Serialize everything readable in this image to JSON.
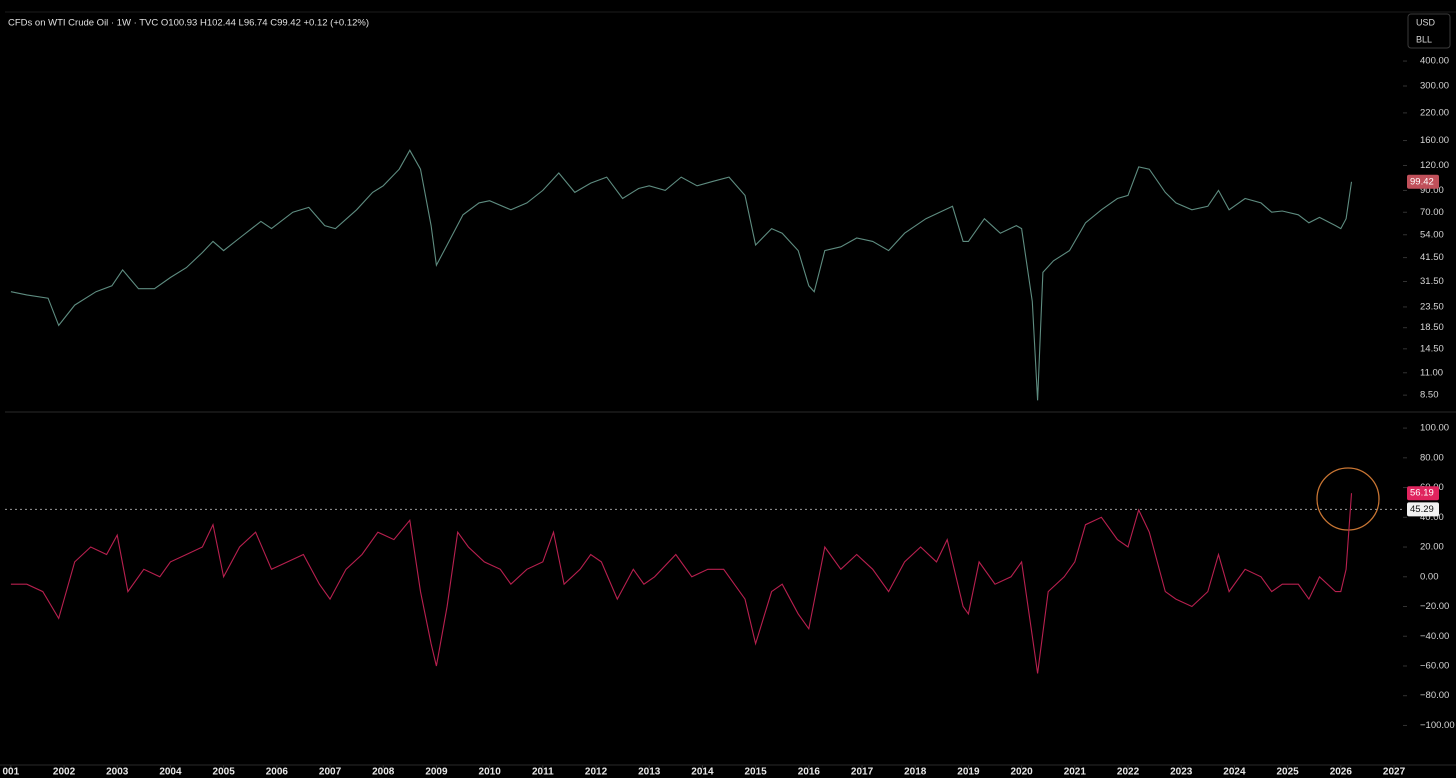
{
  "chart_data": [
    {
      "type": "line",
      "title": "CFDs on WTI Crude Oil · 1W · TVC  O100.93  H102.44  L96.74  C99.42  +0.12 (+0.12%)",
      "currency": "USD",
      "unit": "BLL",
      "log_scale": true,
      "color": "#5e8c80",
      "x": [
        2001.0,
        2001.3,
        2001.7,
        2001.9,
        2002.2,
        2002.6,
        2002.9,
        2003.1,
        2003.4,
        2003.7,
        2004.0,
        2004.3,
        2004.6,
        2004.8,
        2005.0,
        2005.3,
        2005.7,
        2005.9,
        2006.3,
        2006.6,
        2006.9,
        2007.1,
        2007.5,
        2007.8,
        2008.0,
        2008.3,
        2008.5,
        2008.7,
        2008.9,
        2009.0,
        2009.2,
        2009.5,
        2009.8,
        2010.0,
        2010.4,
        2010.7,
        2011.0,
        2011.3,
        2011.6,
        2011.9,
        2012.2,
        2012.5,
        2012.8,
        2013.0,
        2013.3,
        2013.6,
        2013.9,
        2014.2,
        2014.5,
        2014.8,
        2015.0,
        2015.3,
        2015.5,
        2015.8,
        2016.0,
        2016.1,
        2016.3,
        2016.6,
        2016.9,
        2017.2,
        2017.5,
        2017.8,
        2018.2,
        2018.7,
        2018.9,
        2019.0,
        2019.3,
        2019.6,
        2019.9,
        2020.0,
        2020.2,
        2020.3,
        2020.4,
        2020.6,
        2020.9,
        2021.2,
        2021.5,
        2021.8,
        2022.0,
        2022.2,
        2022.4,
        2022.7,
        2022.9,
        2023.2,
        2023.5,
        2023.7,
        2023.9,
        2024.2,
        2024.5,
        2024.7,
        2024.9,
        2025.2,
        2025.4,
        2025.6,
        2025.9,
        2026.0,
        2026.1,
        2026.2
      ],
      "values": [
        28,
        27,
        26,
        19,
        24,
        28,
        30,
        36,
        29,
        29,
        33,
        37,
        44,
        50,
        45,
        52,
        63,
        58,
        70,
        74,
        60,
        58,
        72,
        88,
        95,
        115,
        143,
        115,
        60,
        38,
        48,
        68,
        78,
        80,
        72,
        78,
        90,
        110,
        88,
        98,
        105,
        82,
        92,
        95,
        90,
        105,
        95,
        100,
        105,
        85,
        48,
        58,
        55,
        45,
        30,
        28,
        45,
        47,
        52,
        50,
        45,
        55,
        65,
        75,
        50,
        50,
        65,
        55,
        60,
        58,
        25,
        8,
        35,
        40,
        45,
        62,
        72,
        82,
        85,
        118,
        115,
        88,
        78,
        72,
        75,
        90,
        72,
        82,
        78,
        70,
        71,
        68,
        62,
        66,
        60,
        58,
        65,
        99.42
      ],
      "ylim": [
        7,
        704
      ],
      "yticks": [
        {
          "value": 8.5,
          "label": "8.50"
        },
        {
          "value": 11,
          "label": "11.00"
        },
        {
          "value": 14.5,
          "label": "14.50"
        },
        {
          "value": 18.5,
          "label": "18.50"
        },
        {
          "value": 23.5,
          "label": "23.50"
        },
        {
          "value": 31.5,
          "label": "31.50"
        },
        {
          "value": 41.5,
          "label": "41.50"
        },
        {
          "value": 54,
          "label": "54.00"
        },
        {
          "value": 70,
          "label": "70.00"
        },
        {
          "value": 90,
          "label": "90.00"
        },
        {
          "value": 120,
          "label": "120.00"
        },
        {
          "value": 160,
          "label": "160.00"
        },
        {
          "value": 220,
          "label": "220.00"
        },
        {
          "value": 300,
          "label": "300.00"
        },
        {
          "value": 400,
          "label": "400.00"
        }
      ]
    },
    {
      "type": "line",
      "color": "#b8204f",
      "reference_line": 45.29,
      "x": [
        2001.0,
        2001.3,
        2001.6,
        2001.9,
        2002.2,
        2002.5,
        2002.8,
        2003.0,
        2003.2,
        2003.5,
        2003.8,
        2004.0,
        2004.3,
        2004.6,
        2004.8,
        2005.0,
        2005.3,
        2005.6,
        2005.9,
        2006.2,
        2006.5,
        2006.8,
        2007.0,
        2007.3,
        2007.6,
        2007.9,
        2008.2,
        2008.5,
        2008.7,
        2008.9,
        2009.0,
        2009.2,
        2009.4,
        2009.6,
        2009.9,
        2010.2,
        2010.4,
        2010.7,
        2011.0,
        2011.2,
        2011.4,
        2011.7,
        2011.9,
        2012.1,
        2012.4,
        2012.7,
        2012.9,
        2013.1,
        2013.5,
        2013.8,
        2014.1,
        2014.4,
        2014.8,
        2015.0,
        2015.3,
        2015.5,
        2015.8,
        2016.0,
        2016.3,
        2016.6,
        2016.9,
        2017.2,
        2017.5,
        2017.8,
        2018.1,
        2018.4,
        2018.6,
        2018.9,
        2019.0,
        2019.2,
        2019.5,
        2019.8,
        2020.0,
        2020.2,
        2020.3,
        2020.5,
        2020.8,
        2021.0,
        2021.2,
        2021.5,
        2021.8,
        2022.0,
        2022.2,
        2022.4,
        2022.7,
        2022.9,
        2023.2,
        2023.5,
        2023.7,
        2023.9,
        2024.2,
        2024.5,
        2024.7,
        2024.9,
        2025.2,
        2025.4,
        2025.6,
        2025.9,
        2026.0,
        2026.1,
        2026.2
      ],
      "values": [
        -5,
        -5,
        -10,
        -28,
        10,
        20,
        15,
        28,
        -10,
        5,
        0,
        10,
        15,
        20,
        35,
        0,
        20,
        30,
        5,
        10,
        15,
        -5,
        -15,
        5,
        15,
        30,
        25,
        38,
        -10,
        -45,
        -60,
        -20,
        30,
        20,
        10,
        5,
        -5,
        5,
        10,
        30,
        -5,
        5,
        15,
        10,
        -15,
        5,
        -5,
        0,
        15,
        0,
        5,
        5,
        -15,
        -45,
        -10,
        -5,
        -25,
        -35,
        20,
        5,
        15,
        5,
        -10,
        10,
        20,
        10,
        25,
        -20,
        -25,
        10,
        -5,
        0,
        10,
        -40,
        -65,
        -10,
        0,
        10,
        35,
        40,
        25,
        20,
        45,
        30,
        -10,
        -15,
        -20,
        -10,
        15,
        -10,
        5,
        0,
        -10,
        -5,
        -5,
        -15,
        0,
        -10,
        -10,
        5,
        56.19
      ],
      "ylim": [
        -126.6,
        108.8
      ],
      "yticks": [
        {
          "value": -100,
          "label": "−100.00"
        },
        {
          "value": -80,
          "label": "−80.00"
        },
        {
          "value": -60,
          "label": "−60.00"
        },
        {
          "value": -40,
          "label": "−40.00"
        },
        {
          "value": -20,
          "label": "−20.00"
        },
        {
          "value": 0,
          "label": "0.00"
        },
        {
          "value": 20,
          "label": "20.00"
        },
        {
          "value": 40,
          "label": "40.00"
        },
        {
          "value": 60,
          "label": "60.00"
        },
        {
          "value": 80,
          "label": "80.00"
        },
        {
          "value": 100,
          "label": "100.00"
        }
      ],
      "xlim": [
        2000.89,
        2027.15
      ],
      "xticks": [
        {
          "value": 2001,
          "label": "001"
        },
        2002,
        2003,
        2004,
        2005,
        2006,
        2007,
        2008,
        2009,
        2010,
        2011,
        2012,
        2013,
        2014,
        2015,
        2016,
        2017,
        2018,
        2019,
        2020,
        2021,
        2022,
        2023,
        2024,
        2025,
        2026,
        2027
      ]
    }
  ]
}
